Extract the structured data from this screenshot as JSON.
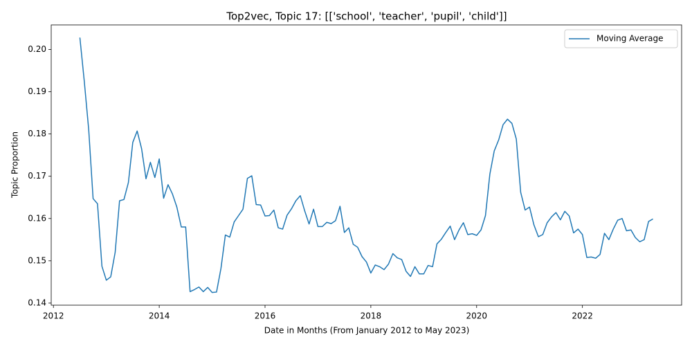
{
  "chart_data": {
    "type": "line",
    "title": "Top2vec, Topic 17: [['school', 'teacher', 'pupil', 'child']]",
    "x_label": "Date in Months (From January 2012 to May 2023)",
    "y_label": "Topic Proportion",
    "x": [
      2012.5,
      2012.583,
      2012.667,
      2012.75,
      2012.833,
      2012.917,
      2013.0,
      2013.083,
      2013.167,
      2013.25,
      2013.333,
      2013.417,
      2013.5,
      2013.583,
      2013.667,
      2013.75,
      2013.833,
      2013.917,
      2014.0,
      2014.083,
      2014.167,
      2014.25,
      2014.333,
      2014.417,
      2014.5,
      2014.583,
      2014.667,
      2014.75,
      2014.833,
      2014.917,
      2015.0,
      2015.083,
      2015.167,
      2015.25,
      2015.333,
      2015.417,
      2015.5,
      2015.583,
      2015.667,
      2015.75,
      2015.833,
      2015.917,
      2016.0,
      2016.083,
      2016.167,
      2016.25,
      2016.333,
      2016.417,
      2016.5,
      2016.583,
      2016.667,
      2016.75,
      2016.833,
      2016.917,
      2017.0,
      2017.083,
      2017.167,
      2017.25,
      2017.333,
      2017.417,
      2017.5,
      2017.583,
      2017.667,
      2017.75,
      2017.833,
      2017.917,
      2018.0,
      2018.083,
      2018.167,
      2018.25,
      2018.333,
      2018.417,
      2018.5,
      2018.583,
      2018.667,
      2018.75,
      2018.833,
      2018.917,
      2019.0,
      2019.083,
      2019.167,
      2019.25,
      2019.333,
      2019.417,
      2019.5,
      2019.583,
      2019.667,
      2019.75,
      2019.833,
      2019.917,
      2020.0,
      2020.083,
      2020.167,
      2020.25,
      2020.333,
      2020.417,
      2020.5,
      2020.583,
      2020.667,
      2020.75,
      2020.833,
      2020.917,
      2021.0,
      2021.083,
      2021.167,
      2021.25,
      2021.333,
      2021.417,
      2021.5,
      2021.583,
      2021.667,
      2021.75,
      2021.833,
      2021.917,
      2022.0,
      2022.083,
      2022.167,
      2022.25,
      2022.333,
      2022.417,
      2022.5,
      2022.583,
      2022.667,
      2022.75,
      2022.833,
      2022.917,
      2023.0,
      2023.083,
      2023.167,
      2023.25,
      2023.333
    ],
    "series": [
      {
        "name": "Moving Average",
        "color": "#1f77b4",
        "values": [
          0.2028,
          0.1925,
          0.181,
          0.1647,
          0.1635,
          0.1487,
          0.1454,
          0.1462,
          0.152,
          0.1642,
          0.1645,
          0.1685,
          0.178,
          0.1807,
          0.1765,
          0.1694,
          0.1733,
          0.1697,
          0.1741,
          0.1648,
          0.168,
          0.1658,
          0.1627,
          0.158,
          0.158,
          0.1427,
          0.1432,
          0.1438,
          0.1427,
          0.1437,
          0.1425,
          0.1426,
          0.1482,
          0.1561,
          0.1556,
          0.1592,
          0.1607,
          0.1622,
          0.1695,
          0.1701,
          0.1633,
          0.1632,
          0.1606,
          0.1607,
          0.162,
          0.1578,
          0.1575,
          0.1608,
          0.1623,
          0.1642,
          0.1654,
          0.1618,
          0.1587,
          0.1622,
          0.1581,
          0.1581,
          0.1591,
          0.1588,
          0.1595,
          0.1629,
          0.1567,
          0.1578,
          0.1539,
          0.1532,
          0.151,
          0.1497,
          0.1471,
          0.149,
          0.1486,
          0.1479,
          0.1492,
          0.1517,
          0.1507,
          0.1503,
          0.1475,
          0.1463,
          0.1486,
          0.1469,
          0.1469,
          0.1489,
          0.1486,
          0.154,
          0.1551,
          0.1567,
          0.1582,
          0.155,
          0.1573,
          0.159,
          0.1562,
          0.1564,
          0.156,
          0.1573,
          0.1607,
          0.1705,
          0.176,
          0.1786,
          0.1822,
          0.1835,
          0.1825,
          0.1788,
          0.1662,
          0.162,
          0.1627,
          0.1585,
          0.1557,
          0.1562,
          0.159,
          0.1604,
          0.1614,
          0.1597,
          0.1617,
          0.1606,
          0.1566,
          0.1575,
          0.1562,
          0.1508,
          0.1509,
          0.1506,
          0.1515,
          0.1565,
          0.155,
          0.1575,
          0.1596,
          0.16,
          0.1571,
          0.1573,
          0.1555,
          0.1545,
          0.155,
          0.1593,
          0.1599
        ]
      }
    ],
    "xlim": [
      2011.958,
      2023.875
    ],
    "xticks": [
      2012,
      2014,
      2016,
      2018,
      2020,
      2022
    ],
    "ylim": [
      0.1395,
      0.2058
    ],
    "yticks": [
      0.14,
      0.15,
      0.16,
      0.17,
      0.18,
      0.19,
      {
        "value": 0.2,
        "label": "0.20"
      }
    ],
    "legend": "upper right",
    "grid": false
  }
}
